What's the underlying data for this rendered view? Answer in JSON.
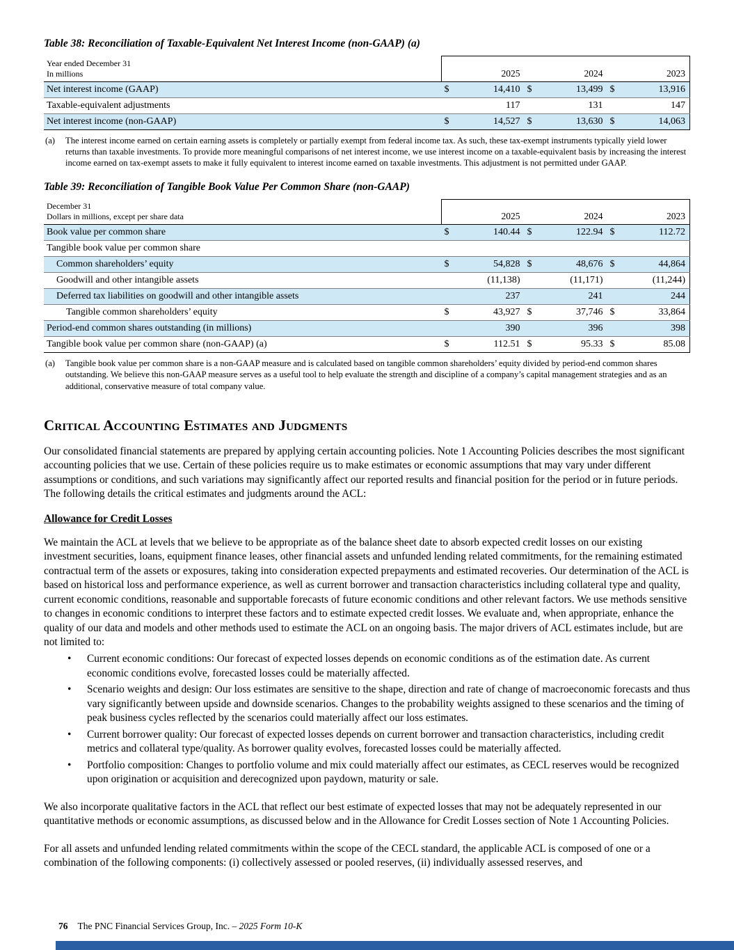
{
  "colors": {
    "row_highlight": "#cfe8f6",
    "footer_bar": "#2b5fa3"
  },
  "table38": {
    "title": "Table 38: Reconciliation of Taxable-Equivalent Net Interest Income (non-GAAP) (a)",
    "header_line1": "Year ended December 31",
    "header_line2": "In millions",
    "years": [
      "2025",
      "2024",
      "2023"
    ],
    "rows": [
      {
        "label": "Net interest income (GAAP)",
        "cur": "$",
        "v": [
          "14,410",
          "13,499",
          "13,916"
        ]
      },
      {
        "label": "Taxable-equivalent adjustments",
        "cur": "",
        "v": [
          "117",
          "131",
          "147"
        ]
      },
      {
        "label": "Net interest income (non-GAAP)",
        "cur": "$",
        "v": [
          "14,527",
          "13,630",
          "14,063"
        ]
      }
    ],
    "footnote_marker": "(a)",
    "footnote": "The interest income earned on certain earning assets is completely or partially exempt from federal income tax. As such, these tax-exempt instruments typically yield lower returns than taxable investments. To provide more meaningful comparisons of net interest income, we use interest income on a taxable-equivalent basis by increasing the interest income earned on tax-exempt assets to make it fully equivalent to interest income earned on taxable investments. This adjustment is not permitted under GAAP."
  },
  "table39": {
    "title": "Table 39: Reconciliation of Tangible Book Value Per Common Share (non-GAAP)",
    "header_line1": "December 31",
    "header_line2": "Dollars in millions, except per share data",
    "years": [
      "2025",
      "2024",
      "2023"
    ],
    "rows": [
      {
        "label": "Book value per common share",
        "cur": "$",
        "v": [
          "140.44",
          "122.94",
          "112.72"
        ]
      },
      {
        "label": "Tangible book value per common share",
        "cur": "",
        "v": [
          "",
          "",
          ""
        ]
      },
      {
        "label": "Common shareholders’ equity",
        "cur": "$",
        "v": [
          "54,828",
          "48,676",
          "44,864"
        ]
      },
      {
        "label": "Goodwill and other intangible assets",
        "cur": "",
        "v": [
          "(11,138)",
          "(11,171)",
          "(11,244)"
        ]
      },
      {
        "label": "Deferred tax liabilities on goodwill and other intangible assets",
        "cur": "",
        "v": [
          "237",
          "241",
          "244"
        ]
      },
      {
        "label": "Tangible common shareholders’ equity",
        "cur": "$",
        "v": [
          "43,927",
          "37,746",
          "33,864"
        ]
      },
      {
        "label": "Period-end common shares outstanding (in millions)",
        "cur": "",
        "v": [
          "390",
          "396",
          "398"
        ]
      },
      {
        "label": "Tangible book value per common share (non-GAAP) (a)",
        "cur": "$",
        "v": [
          "112.51",
          "95.33",
          "85.08"
        ]
      }
    ],
    "footnote_marker": "(a)",
    "footnote": "Tangible book value per common share is a non-GAAP measure and is calculated based on tangible common shareholders’ equity divided by period-end common shares outstanding. We believe this non-GAAP measure serves as a useful tool to help evaluate the strength and discipline of a company’s capital management strategies and as an additional, conservative measure of total company value."
  },
  "section": {
    "heading": "Critical Accounting Estimates and Judgments",
    "para1": "Our consolidated financial statements are prepared by applying certain accounting policies. Note 1 Accounting Policies describes the most significant accounting policies that we use. Certain of these policies require us to make estimates or economic assumptions that may vary under different assumptions or conditions, and such variations may significantly affect our reported results and financial position for the period or in future periods. The following details the critical estimates and judgments around the ACL:",
    "subheading": "Allowance for Credit Losses",
    "para2": "We maintain the ACL at levels that we believe to be appropriate as of the balance sheet date to absorb expected credit losses on our existing investment securities, loans, equipment finance leases, other financial assets and unfunded lending related commitments, for the remaining estimated contractual term of the assets or exposures, taking into consideration expected prepayments and estimated recoveries. Our determination of the ACL is based on historical loss and performance experience, as well as current borrower and transaction characteristics including collateral type and quality, current economic conditions, reasonable and supportable forecasts of future economic conditions and other relevant factors. We use methods sensitive to changes in economic conditions to interpret these factors and to estimate expected credit losses. We evaluate and, when appropriate, enhance the quality of our data and models and other methods used to estimate the ACL on an ongoing basis. The major drivers of ACL estimates include, but are not limited to:",
    "bullets": [
      "Current economic conditions: Our forecast of expected losses depends on economic conditions as of the estimation date. As current economic conditions evolve, forecasted losses could be materially affected.",
      "Scenario weights and design: Our loss estimates are sensitive to the shape, direction and rate of change of macroeconomic forecasts and thus vary significantly between upside and downside scenarios. Changes to the probability weights assigned to these scenarios and the timing of peak business cycles reflected by the scenarios could materially affect our loss estimates.",
      "Current borrower quality: Our forecast of expected losses depends on current borrower and transaction characteristics, including credit metrics and collateral type/quality. As borrower quality evolves, forecasted losses could be materially affected.",
      "Portfolio composition: Changes to portfolio volume and mix could materially affect our estimates, as CECL reserves would be recognized upon origination or acquisition and derecognized upon paydown, maturity or sale."
    ],
    "para3": "We also incorporate qualitative factors in the ACL that reflect our best estimate of expected losses that may not be adequately represented in our quantitative methods or economic assumptions, as discussed below and in the Allowance for Credit Losses section of Note 1 Accounting Policies.",
    "para4": "For all assets and unfunded lending related commitments within the scope of the CECL standard, the applicable ACL is composed of one or a combination of the following components: (i) collectively assessed or pooled reserves, (ii) individually assessed reserves, and"
  },
  "page": {
    "footer_page": "76",
    "footer_text": "The PNC Financial Services Group, Inc. – ",
    "footer_italic": "2025 Form 10-K"
  }
}
